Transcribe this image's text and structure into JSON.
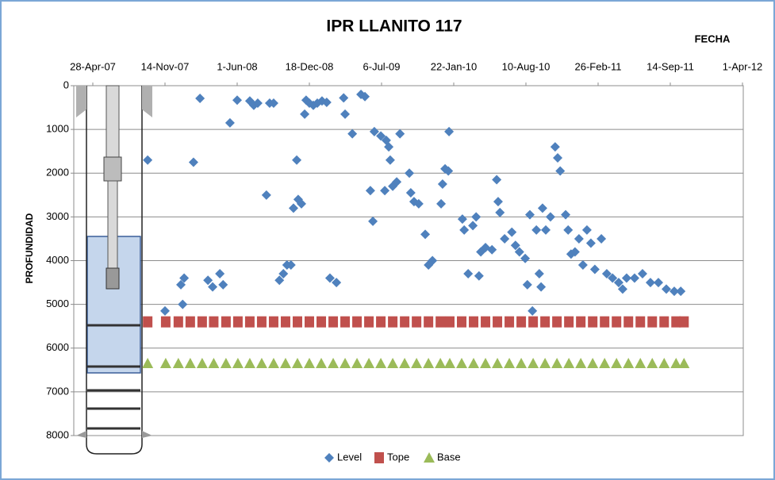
{
  "chart_data": {
    "type": "scatter",
    "title": "IPR LLANITO 117",
    "x_label": "FECHA",
    "y_label": "PROFUNDIDAD",
    "xlim": [
      "2007-04-28",
      "2012-04-01"
    ],
    "xticks": [
      {
        "value": "2007-04-28",
        "label": "28-Apr-07"
      },
      {
        "value": "2007-11-14",
        "label": "14-Nov-07"
      },
      {
        "value": "2008-06-01",
        "label": "1-Jun-08"
      },
      {
        "value": "2008-12-18",
        "label": "18-Dec-08"
      },
      {
        "value": "2009-07-06",
        "label": "6-Jul-09"
      },
      {
        "value": "2010-01-22",
        "label": "22-Jan-10"
      },
      {
        "value": "2010-08-10",
        "label": "10-Aug-10"
      },
      {
        "value": "2011-02-26",
        "label": "26-Feb-11"
      },
      {
        "value": "2011-09-14",
        "label": "14-Sep-11"
      },
      {
        "value": "2012-04-01",
        "label": "1-Apr-12"
      }
    ],
    "ylim": [
      0,
      8000
    ],
    "yticks": [
      0,
      1000,
      2000,
      3000,
      4000,
      5000,
      6000,
      7000,
      8000
    ],
    "y_inverted": true,
    "grid": true,
    "legend": "bottom",
    "series": [
      {
        "name": "Level",
        "color": "#4f81bd",
        "marker": "diamond",
        "x": [
          "2007-09-27",
          "2007-11-14",
          "2007-12-28",
          "2008-01-06",
          "2008-01-02",
          "2008-02-01",
          "2008-02-19",
          "2008-03-12",
          "2008-03-25",
          "2008-04-14",
          "2008-04-23",
          "2008-05-12",
          "2008-06-01",
          "2008-07-06",
          "2008-07-17",
          "2008-07-28",
          "2008-08-21",
          "2008-08-30",
          "2008-09-10",
          "2008-09-26",
          "2008-10-07",
          "2008-10-17",
          "2008-10-28",
          "2008-11-04",
          "2008-11-13",
          "2008-11-17",
          "2008-11-26",
          "2008-12-05",
          "2008-12-09",
          "2008-12-18",
          "2008-12-29",
          "2009-01-09",
          "2009-01-22",
          "2009-02-04",
          "2009-02-13",
          "2009-03-03",
          "2009-03-23",
          "2009-03-27",
          "2009-04-16",
          "2009-05-10",
          "2009-05-21",
          "2009-06-05",
          "2009-06-12",
          "2009-06-16",
          "2009-07-04",
          "2009-07-15",
          "2009-07-19",
          "2009-07-26",
          "2009-07-30",
          "2009-08-06",
          "2009-08-17",
          "2009-08-26",
          "2009-09-21",
          "2009-09-25",
          "2009-10-04",
          "2009-10-17",
          "2009-11-04",
          "2009-11-13",
          "2009-11-24",
          "2009-12-18",
          "2009-12-22",
          "2009-12-29",
          "2010-01-07",
          "2010-01-09",
          "2010-02-15",
          "2010-02-20",
          "2010-03-03",
          "2010-03-16",
          "2010-03-25",
          "2010-04-02",
          "2010-04-07",
          "2010-04-20",
          "2010-05-08",
          "2010-05-21",
          "2010-05-25",
          "2010-05-30",
          "2010-06-12",
          "2010-07-02",
          "2010-07-12",
          "2010-07-23",
          "2010-08-08",
          "2010-08-14",
          "2010-08-21",
          "2010-08-28",
          "2010-09-08",
          "2010-09-16",
          "2010-09-21",
          "2010-09-25",
          "2010-10-04",
          "2010-10-17",
          "2010-10-30",
          "2010-11-06",
          "2010-11-13",
          "2010-11-28",
          "2010-12-05",
          "2010-12-13",
          "2010-12-24",
          "2011-01-04",
          "2011-01-15",
          "2011-01-26",
          "2011-02-06",
          "2011-02-17",
          "2011-03-07",
          "2011-03-22",
          "2011-04-07",
          "2011-04-24",
          "2011-05-05",
          "2011-05-16",
          "2011-06-07",
          "2011-06-29",
          "2011-07-21",
          "2011-08-12",
          "2011-09-03",
          "2011-09-25",
          "2011-10-13"
        ],
        "values": [
          1700,
          5150,
          4550,
          4400,
          5000,
          1750,
          290,
          4450,
          4600,
          4300,
          4550,
          850,
          330,
          350,
          450,
          400,
          2500,
          400,
          400,
          4450,
          4300,
          4100,
          4100,
          2800,
          1700,
          2600,
          2700,
          650,
          330,
          400,
          450,
          400,
          350,
          380,
          4400,
          4500,
          280,
          650,
          1100,
          200,
          250,
          2400,
          3100,
          1050,
          1150,
          2400,
          1250,
          1400,
          1700,
          2300,
          2200,
          1100,
          2000,
          2450,
          2650,
          2700,
          3400,
          4100,
          4000,
          2700,
          2250,
          1900,
          1950,
          1050,
          3050,
          3300,
          4300,
          3200,
          3000,
          4350,
          3800,
          3700,
          3750,
          2150,
          2650,
          2900,
          3500,
          3350,
          3650,
          3800,
          3950,
          4550,
          2950,
          5150,
          3300,
          4300,
          4600,
          2800,
          3300,
          3000,
          1400,
          1650,
          1950,
          2950,
          3300,
          3850,
          3800,
          3500,
          4100,
          3300,
          3600,
          4200,
          3500,
          4300,
          4400,
          4500,
          4650,
          4400,
          4400,
          4300,
          4500,
          4500,
          4650,
          4700,
          4700
        ]
      },
      {
        "name": "Tope",
        "color": "#c0504d",
        "marker": "square",
        "x": [
          "2007-09-27",
          "2007-11-16",
          "2007-12-21",
          "2008-01-23",
          "2008-02-25",
          "2008-03-28",
          "2008-05-01",
          "2008-06-03",
          "2008-07-06",
          "2008-08-08",
          "2008-09-10",
          "2008-10-13",
          "2008-11-15",
          "2008-12-18",
          "2009-01-20",
          "2009-02-22",
          "2009-03-27",
          "2009-04-29",
          "2009-06-01",
          "2009-07-04",
          "2009-08-06",
          "2009-09-08",
          "2009-10-11",
          "2009-11-13",
          "2009-12-16",
          "2010-01-11",
          "2010-02-13",
          "2010-03-18",
          "2010-04-20",
          "2010-05-23",
          "2010-06-25",
          "2010-07-28",
          "2010-08-30",
          "2010-10-02",
          "2010-11-04",
          "2010-12-07",
          "2011-01-09",
          "2011-02-11",
          "2011-03-16",
          "2011-04-18",
          "2011-05-21",
          "2011-06-23",
          "2011-07-26",
          "2011-08-28",
          "2011-09-30",
          "2011-10-22"
        ],
        "values": [
          5400,
          5400,
          5400,
          5400,
          5400,
          5400,
          5400,
          5400,
          5400,
          5400,
          5400,
          5400,
          5400,
          5400,
          5400,
          5400,
          5400,
          5400,
          5400,
          5400,
          5400,
          5400,
          5400,
          5400,
          5400,
          5400,
          5400,
          5400,
          5400,
          5400,
          5400,
          5400,
          5400,
          5400,
          5400,
          5400,
          5400,
          5400,
          5400,
          5400,
          5400,
          5400,
          5400,
          5400,
          5400,
          5400
        ]
      },
      {
        "name": "Base",
        "color": "#9bbb59",
        "marker": "triangle",
        "x": [
          "2007-09-27",
          "2007-11-16",
          "2007-12-21",
          "2008-01-23",
          "2008-02-25",
          "2008-03-28",
          "2008-05-01",
          "2008-06-03",
          "2008-07-06",
          "2008-08-08",
          "2008-09-10",
          "2008-10-13",
          "2008-11-15",
          "2008-12-18",
          "2009-01-20",
          "2009-02-22",
          "2009-03-27",
          "2009-04-29",
          "2009-06-01",
          "2009-07-04",
          "2009-08-06",
          "2009-09-08",
          "2009-10-11",
          "2009-11-13",
          "2009-12-16",
          "2010-01-11",
          "2010-02-13",
          "2010-03-18",
          "2010-04-20",
          "2010-05-23",
          "2010-06-25",
          "2010-07-28",
          "2010-08-30",
          "2010-10-02",
          "2010-11-04",
          "2010-12-07",
          "2011-01-09",
          "2011-02-11",
          "2011-03-16",
          "2011-04-18",
          "2011-05-21",
          "2011-06-23",
          "2011-07-26",
          "2011-08-28",
          "2011-09-30",
          "2011-10-22"
        ],
        "values": [
          6350,
          6350,
          6350,
          6350,
          6350,
          6350,
          6350,
          6350,
          6350,
          6350,
          6350,
          6350,
          6350,
          6350,
          6350,
          6350,
          6350,
          6350,
          6350,
          6350,
          6350,
          6350,
          6350,
          6350,
          6350,
          6350,
          6350,
          6350,
          6350,
          6350,
          6350,
          6350,
          6350,
          6350,
          6350,
          6350,
          6350,
          6350,
          6350,
          6350,
          6350,
          6350,
          6350,
          6350,
          6350,
          6350
        ]
      }
    ]
  }
}
